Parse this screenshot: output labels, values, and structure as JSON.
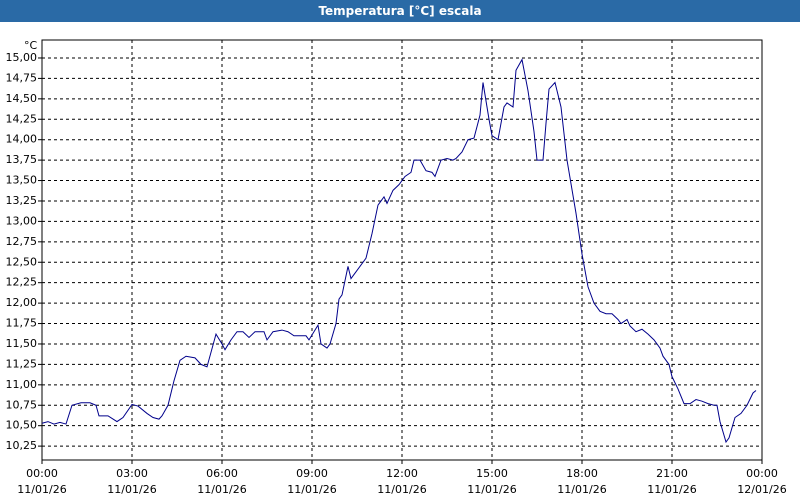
{
  "window_title": "Temperatura [°C] escala",
  "chart_data": {
    "type": "line",
    "y_unit": "°C",
    "grid": true,
    "xlim": [
      0,
      24
    ],
    "ylim": [
      10.08,
      15.22
    ],
    "xticks": [
      {
        "value": 0,
        "label": "00:00"
      },
      {
        "value": 3,
        "label": "03:00"
      },
      {
        "value": 6,
        "label": "06:00"
      },
      {
        "value": 9,
        "label": "09:00"
      },
      {
        "value": 12,
        "label": "12:00"
      },
      {
        "value": 15,
        "label": "15:00"
      },
      {
        "value": 18,
        "label": "18:00"
      },
      {
        "value": 21,
        "label": "21:00"
      },
      {
        "value": 24,
        "label": "00:00"
      }
    ],
    "xtick_dates": [
      "11/01/26",
      "11/01/26",
      "11/01/26",
      "11/01/26",
      "11/01/26",
      "11/01/26",
      "11/01/26",
      "11/01/26",
      "12/01/26"
    ],
    "yticks": [
      {
        "value": 10.25,
        "label": "10,25"
      },
      {
        "value": 10.5,
        "label": "10,50"
      },
      {
        "value": 10.75,
        "label": "10,75"
      },
      {
        "value": 11,
        "label": "11,00"
      },
      {
        "value": 11.25,
        "label": "11,25"
      },
      {
        "value": 11.5,
        "label": "11,50"
      },
      {
        "value": 11.75,
        "label": "11,75"
      },
      {
        "value": 12,
        "label": "12,00"
      },
      {
        "value": 12.25,
        "label": "12,25"
      },
      {
        "value": 12.5,
        "label": "12,50"
      },
      {
        "value": 12.75,
        "label": "12,75"
      },
      {
        "value": 13,
        "label": "13,00"
      },
      {
        "value": 13.25,
        "label": "13,25"
      },
      {
        "value": 13.5,
        "label": "13,50"
      },
      {
        "value": 13.75,
        "label": "13,75"
      },
      {
        "value": 14,
        "label": "14,00"
      },
      {
        "value": 14.25,
        "label": "14,25"
      },
      {
        "value": 14.5,
        "label": "14,50"
      },
      {
        "value": 14.75,
        "label": "14,75"
      },
      {
        "value": 15,
        "label": "15,00"
      }
    ],
    "x": [
      0.0,
      0.2,
      0.4,
      0.6,
      0.8,
      1.0,
      1.3,
      1.6,
      1.8,
      1.9,
      2.2,
      2.5,
      2.7,
      3.0,
      3.2,
      3.5,
      3.7,
      3.9,
      4.0,
      4.2,
      4.4,
      4.6,
      4.8,
      5.1,
      5.3,
      5.5,
      5.8,
      6.0,
      6.1,
      6.3,
      6.5,
      6.7,
      6.9,
      7.1,
      7.4,
      7.5,
      7.7,
      8.0,
      8.2,
      8.4,
      8.6,
      8.8,
      8.9,
      9.2,
      9.3,
      9.5,
      9.6,
      9.8,
      9.9,
      10.0,
      10.2,
      10.3,
      10.5,
      10.8,
      11.0,
      11.2,
      11.4,
      11.5,
      11.7,
      11.9,
      12.1,
      12.3,
      12.4,
      12.6,
      12.8,
      13.0,
      13.1,
      13.3,
      13.5,
      13.7,
      13.8,
      14.0,
      14.2,
      14.4,
      14.6,
      14.7,
      14.9,
      15.0,
      15.2,
      15.4,
      15.5,
      15.7,
      15.8,
      16.0,
      16.2,
      16.4,
      16.5,
      16.7,
      16.8,
      16.9,
      17.1,
      17.3,
      17.5,
      17.8,
      18.0,
      18.2,
      18.4,
      18.6,
      18.8,
      19.0,
      19.2,
      19.3,
      19.5,
      19.6,
      19.8,
      20.0,
      20.2,
      20.4,
      20.6,
      20.7,
      20.9,
      21.0,
      21.2,
      21.4,
      21.6,
      21.8,
      22.0,
      22.2,
      22.4,
      22.5,
      22.6,
      22.8,
      22.9,
      23.1,
      23.3,
      23.5,
      23.7,
      23.8
    ],
    "series": [
      {
        "name": "Temperatura",
        "color": "#00008b",
        "values": [
          10.53,
          10.55,
          10.52,
          10.54,
          10.52,
          10.75,
          10.78,
          10.78,
          10.75,
          10.62,
          10.62,
          10.55,
          10.6,
          10.76,
          10.74,
          10.65,
          10.6,
          10.58,
          10.62,
          10.75,
          11.05,
          11.3,
          11.35,
          11.33,
          11.25,
          11.22,
          11.62,
          11.5,
          11.43,
          11.55,
          11.65,
          11.65,
          11.58,
          11.65,
          11.65,
          11.55,
          11.65,
          11.67,
          11.65,
          11.6,
          11.6,
          11.6,
          11.55,
          11.73,
          11.5,
          11.45,
          11.5,
          11.75,
          12.05,
          12.1,
          12.45,
          12.3,
          12.4,
          12.55,
          12.85,
          13.2,
          13.3,
          13.22,
          13.38,
          13.45,
          13.55,
          13.6,
          13.75,
          13.75,
          13.62,
          13.6,
          13.55,
          13.75,
          13.77,
          13.75,
          13.77,
          13.85,
          14.0,
          14.02,
          14.3,
          14.7,
          14.25,
          14.05,
          14.0,
          14.4,
          14.45,
          14.4,
          14.85,
          14.98,
          14.6,
          14.1,
          13.75,
          13.75,
          14.2,
          14.62,
          14.7,
          14.4,
          13.75,
          13.1,
          12.6,
          12.2,
          12.0,
          11.9,
          11.87,
          11.87,
          11.8,
          11.75,
          11.8,
          11.72,
          11.65,
          11.68,
          11.62,
          11.55,
          11.45,
          11.35,
          11.25,
          11.1,
          10.95,
          10.77,
          10.77,
          10.82,
          10.8,
          10.77,
          10.75,
          10.75,
          10.55,
          10.3,
          10.35,
          10.6,
          10.65,
          10.75,
          10.9,
          10.93
        ]
      }
    ]
  }
}
